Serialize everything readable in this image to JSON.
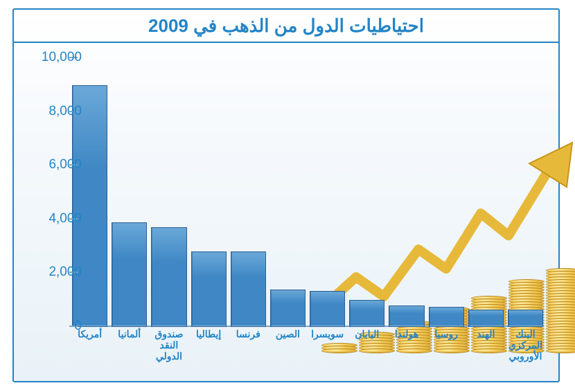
{
  "chart": {
    "type": "bar",
    "title": "احتياطيات الدول من الذهب في 2009",
    "title_fontsize": 26,
    "title_color": "#2384c6",
    "frame_border_color": "#2384c6",
    "background_gradient": [
      "#ffffff",
      "#e9f2f8"
    ],
    "axis_color": "#7aa9c7",
    "label_color": "#2384c6",
    "xlabel_color": "#2384c6",
    "xlabel_fontsize": 14,
    "ylabel_fontsize": 19,
    "bar_fill": "#3f88c5",
    "bar_border": "#2c5f94",
    "ylim": [
      0,
      10000
    ],
    "ytick_step": 2000,
    "yticks": [
      "0",
      "2,000",
      "4,000",
      "6,000",
      "8,000",
      "10,000"
    ],
    "categories": [
      "أمريكا",
      "ألمانيا",
      "صندوق\nالنقد\nالدولي",
      "إيطاليا",
      "فرنسا",
      "الصين",
      "سويسرا",
      "اليابان",
      "هولندا",
      "روسيا",
      "الهند",
      "البنك\nالمركزي\nالأوروبي"
    ],
    "values": [
      9000,
      3900,
      3700,
      2800,
      2800,
      1400,
      1350,
      1000,
      800,
      750,
      650,
      650
    ],
    "decorative": {
      "coin_color": "#e7b93a",
      "arrow_color": "#e7b93a",
      "coin_stack_heights": [
        3,
        7,
        11,
        16,
        20,
        26,
        30
      ]
    }
  }
}
